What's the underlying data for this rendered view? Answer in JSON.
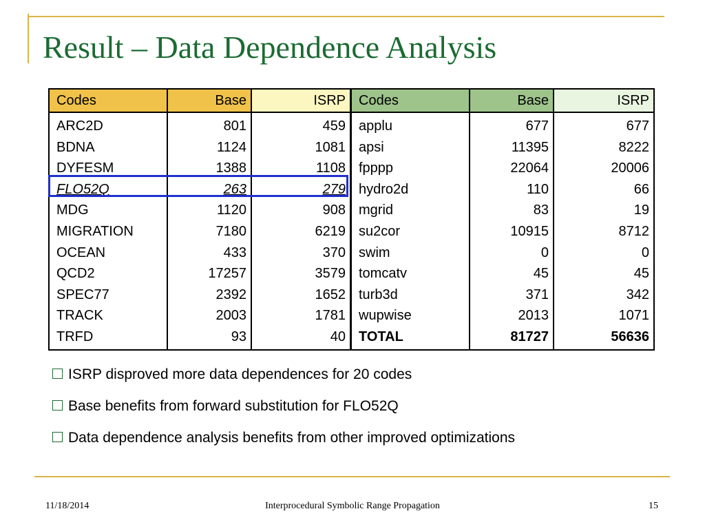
{
  "title": "Result – Data Dependence Analysis",
  "left_table": {
    "headers": [
      "Codes",
      "Base",
      "ISRP"
    ],
    "rows": [
      {
        "code": "ARC2D",
        "base": "801",
        "isrp": "459"
      },
      {
        "code": "BDNA",
        "base": "1124",
        "isrp": "1081"
      },
      {
        "code": "DYFESM",
        "base": "1388",
        "isrp": "1108"
      },
      {
        "code": "FLO52Q",
        "base": "263",
        "isrp": "279"
      },
      {
        "code": "MDG",
        "base": "1120",
        "isrp": "908"
      },
      {
        "code": "MIGRATION",
        "base": "7180",
        "isrp": "6219"
      },
      {
        "code": "OCEAN",
        "base": "433",
        "isrp": "370"
      },
      {
        "code": "QCD2",
        "base": "17257",
        "isrp": "3579"
      },
      {
        "code": "SPEC77",
        "base": "2392",
        "isrp": "1652"
      },
      {
        "code": "TRACK",
        "base": "2003",
        "isrp": "1781"
      },
      {
        "code": "TRFD",
        "base": "93",
        "isrp": "40"
      }
    ]
  },
  "right_table": {
    "headers": [
      "Codes",
      "Base",
      "ISRP"
    ],
    "rows": [
      {
        "code": "applu",
        "base": "677",
        "isrp": "677"
      },
      {
        "code": "apsi",
        "base": "11395",
        "isrp": "8222"
      },
      {
        "code": "fpppp",
        "base": "22064",
        "isrp": "20006"
      },
      {
        "code": "hydro2d",
        "base": "110",
        "isrp": "66"
      },
      {
        "code": "mgrid",
        "base": "83",
        "isrp": "19"
      },
      {
        "code": "su2cor",
        "base": "10915",
        "isrp": "8712"
      },
      {
        "code": "swim",
        "base": "0",
        "isrp": "0"
      },
      {
        "code": "tomcatv",
        "base": "45",
        "isrp": "45"
      },
      {
        "code": "turb3d",
        "base": "371",
        "isrp": "342"
      },
      {
        "code": "wupwise",
        "base": "2013",
        "isrp": "1071"
      },
      {
        "code": "TOTAL",
        "base": "81727",
        "isrp": "56636"
      }
    ]
  },
  "bullets": [
    "ISRP disproved more data dependences for 20 codes",
    "Base benefits from forward substitution for FLO52Q",
    "Data dependence analysis benefits from other improved optimizations"
  ],
  "footer": {
    "date": "11/18/2014",
    "center": "Interprocedural Symbolic Range Propagation",
    "page": "15"
  },
  "colors": {
    "title": "#1b6b32",
    "rule": "#d8b548",
    "left_header": "#f0c24a",
    "left_header_isrp": "#fcf6c0",
    "right_header": "#9ec38b",
    "right_header_isrp": "#e9f5e0",
    "highlight_box": "#1f2fd0"
  },
  "icons": {
    "bullet": "hollow-square-bullet-icon"
  }
}
